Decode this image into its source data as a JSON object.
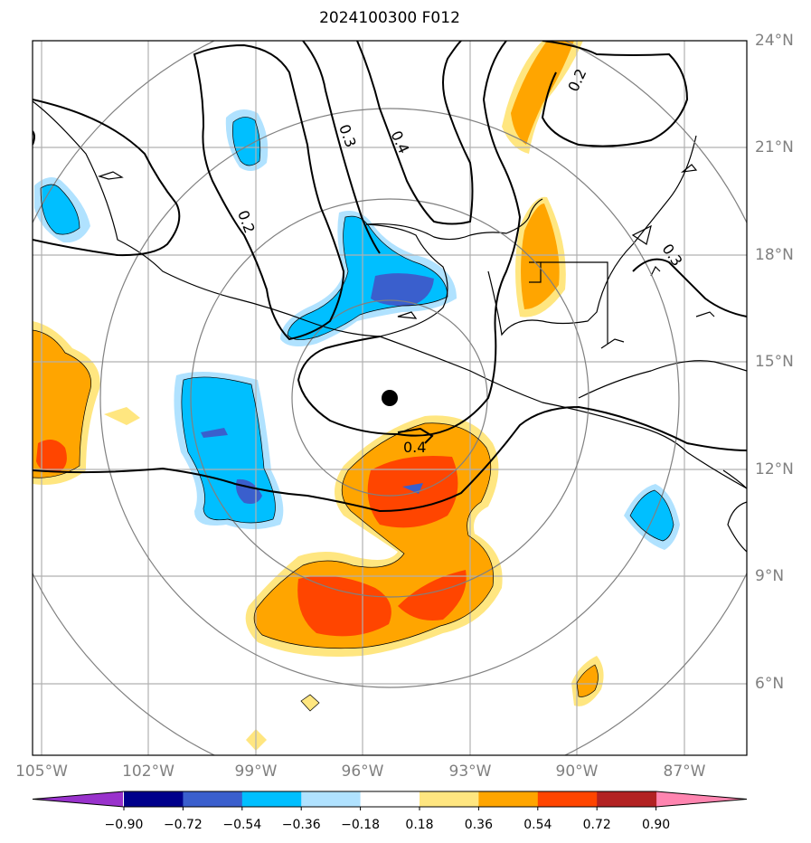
{
  "title": "2024100300 F012",
  "latitude_labels": [
    "24°N",
    "21°N",
    "18°N",
    "15°N",
    "12°N",
    "9°N",
    "6°N"
  ],
  "longitude_labels": [
    "105°W",
    "102°W",
    "99°W",
    "96°W",
    "93°W",
    "90°W",
    "87°W"
  ],
  "contour_labels": [
    "0.2",
    "0.3",
    "0.4",
    "0.2",
    "0.3",
    "0.4"
  ],
  "colorbar": {
    "tick_labels": [
      "−0.90",
      "−0.72",
      "−0.54",
      "−0.36",
      "−0.18",
      "0.18",
      "0.36",
      "0.54",
      "0.72",
      "0.90"
    ],
    "colors": [
      "#9932cc",
      "#00008b",
      "#3a5fcd",
      "#00bfff",
      "#b0e2ff",
      "#ffffff",
      "#ffe680",
      "#ffa500",
      "#ff4500",
      "#b22222",
      "#ff85b0"
    ]
  },
  "center_marker": "storm-center"
}
